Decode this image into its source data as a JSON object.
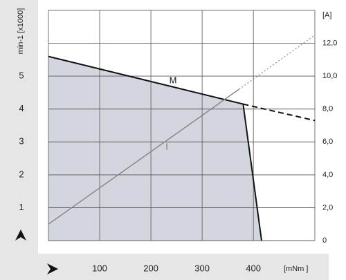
{
  "chart_data": {
    "type": "line",
    "y_label": "min-1 [x1000]",
    "y2_label": "[A]",
    "x_label": "[mNm ]",
    "xlim": [
      0,
      520
    ],
    "xticks": [
      100,
      200,
      300,
      400
    ],
    "ylim": [
      0,
      7
    ],
    "yticks": [
      1,
      2,
      3,
      4,
      5
    ],
    "y2lim": [
      0,
      14
    ],
    "y2ticks": [
      0,
      {
        "value": 2,
        "label": "2,0"
      },
      {
        "value": 4,
        "label": "4,0"
      },
      {
        "value": 6,
        "label": "6,0"
      },
      {
        "value": 8,
        "label": "8,0"
      },
      {
        "value": 10,
        "label": "10,0"
      },
      {
        "value": 12,
        "label": "12,0"
      }
    ],
    "grid": true,
    "series": [
      {
        "name": "M",
        "color": "#111111",
        "x": [
          0,
          380,
          416
        ],
        "values": [
          5.6,
          4.15,
          0
        ],
        "fill": "#d3d6df",
        "dash": "none",
        "width": 2
      },
      {
        "color": "#111111",
        "x": [
          380,
          520
        ],
        "values": [
          4.15,
          3.65
        ],
        "dash": "8 5",
        "width": 2
      },
      {
        "name": "I",
        "color": "#888888",
        "axis": "y2",
        "x": [
          0,
          372
        ],
        "values": [
          1.0,
          9.2
        ],
        "dash": "none",
        "width": 1.5
      },
      {
        "color": "#888888",
        "axis": "y2",
        "x": [
          372,
          520
        ],
        "values": [
          9.2,
          12.5
        ],
        "dash": "2 3",
        "width": 1.2
      }
    ]
  }
}
